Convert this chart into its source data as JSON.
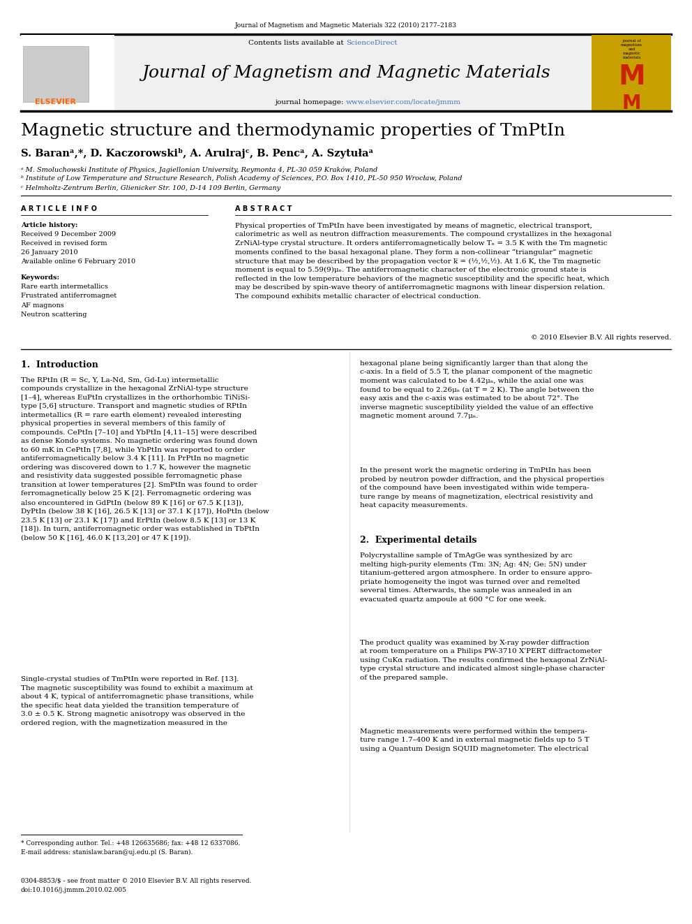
{
  "page_bg": "#ffffff",
  "top_journal_ref": "Journal of Magnetism and Magnetic Materials 322 (2010) 2177–2183",
  "header_bg": "#f0f0f0",
  "sciencedirect_color": "#4472c4",
  "journal_homepage_url_color": "#4472c4",
  "elsevier_color": "#FF6600",
  "paper_title": "Magnetic structure and thermodynamic properties of TmPtIn",
  "authors": "S. Baranᵃ,*, D. Kaczorowskiᵇ, A. Arulrajᶜ, B. Pencᵃ, A. Szytułaᵃ",
  "affil_a": "ᵃ M. Smoluchowski Institute of Physics, Jagiellonian University, Reymonta 4, PL-30 059 Kraków, Poland",
  "affil_b": "ᵇ Institute of Low Temperature and Structure Research, Polish Academy of Sciences, P.O. Box 1410, PL-50 950 Wrocław, Poland",
  "affil_c": "ᶜ Helmholtz-Zentrum Berlin, Glienicker Str. 100, D-14 109 Berlin, Germany",
  "article_history_title": "Article history:",
  "received1": "Received 9 December 2009",
  "received_revised": "Received in revised form",
  "received_revised2": "26 January 2010",
  "available": "Available online 6 February 2010",
  "kw1": "Rare earth intermetallics",
  "kw2": "Frustrated antiferromagnet",
  "kw3": "AF magnons",
  "kw4": "Neutron scattering",
  "copyright": "© 2010 Elsevier B.V. All rights reserved.",
  "footnote_star": "* Corresponding author. Tel.: +48 126635686; fax: +48 12 6337086.",
  "footnote_email": "E-mail address: stanislaw.baran@uj.edu.pl (S. Baran).",
  "footnote_bottom1": "0304-8853/$ - see front matter © 2010 Elsevier B.V. All rights reserved.",
  "footnote_bottom2": "doi:10.1016/j.jmmm.2010.02.005"
}
